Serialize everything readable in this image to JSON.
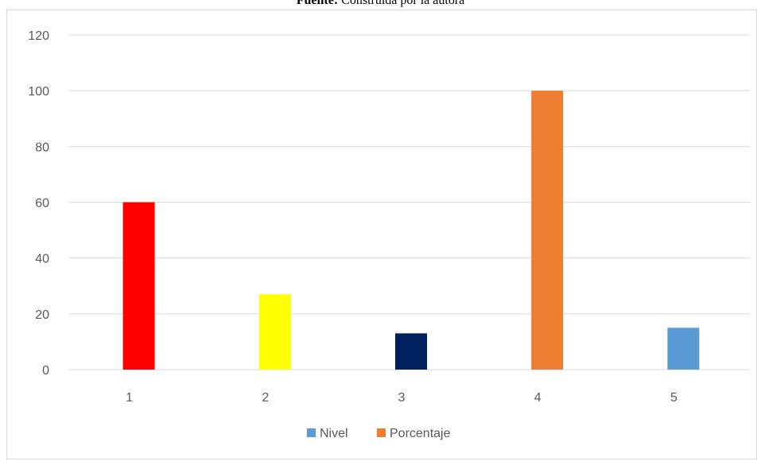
{
  "caption": {
    "bold": "Fuente:",
    "text": " Construida por la autora"
  },
  "chart_data": {
    "type": "bar",
    "categories": [
      "1",
      "2",
      "3",
      "4",
      "5"
    ],
    "bars": [
      {
        "category": "1",
        "value": 60,
        "color": "#ff0000"
      },
      {
        "category": "2",
        "value": 27,
        "color": "#ffff00"
      },
      {
        "category": "3",
        "value": 13,
        "color": "#002060"
      },
      {
        "category": "4",
        "value": 100,
        "color": "#ed7d31"
      },
      {
        "category": "5",
        "value": 15,
        "color": "#5b9bd5"
      }
    ],
    "legend": [
      {
        "name": "Nivel",
        "color": "#5b9bd5"
      },
      {
        "name": "Porcentaje",
        "color": "#ed7d31"
      }
    ],
    "legend_position": "bottom",
    "ylim": [
      0,
      120
    ],
    "yticks": [
      0,
      20,
      40,
      60,
      80,
      100,
      120
    ],
    "grid": true,
    "gridline_color": "#d9d9d9",
    "text_color": "#595959"
  }
}
